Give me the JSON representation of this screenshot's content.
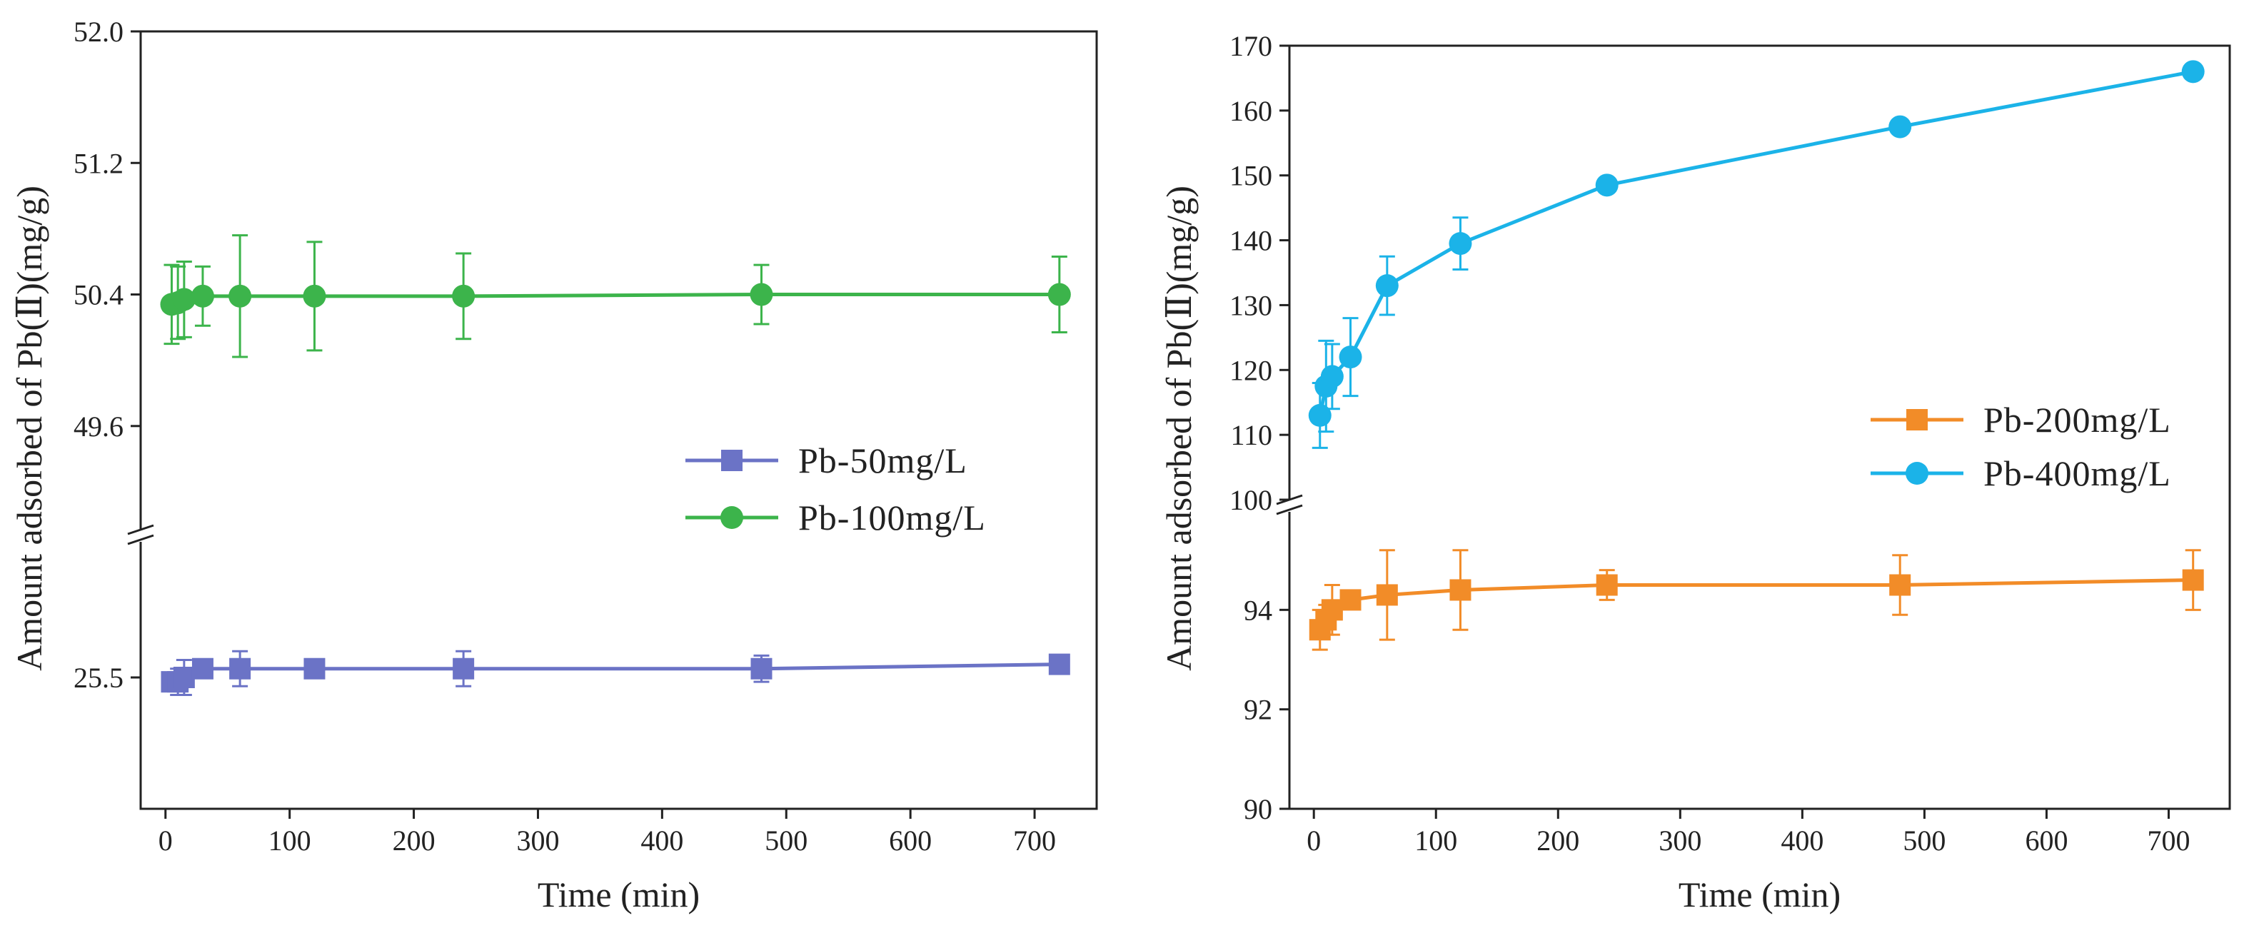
{
  "chart_data": [
    {
      "type": "line",
      "xlabel": "Time (min)",
      "ylabel": "Amount adsorbed of Pb(Ⅱ)(mg/g)",
      "xlim": [
        -20,
        750
      ],
      "xticks": [
        "0",
        "100",
        "200",
        "300",
        "400",
        "500",
        "600",
        "700"
      ],
      "y_axis_broken": true,
      "upper_ylim": [
        49.0,
        52.0
      ],
      "upper_yticks": [
        "52.0",
        "51.2",
        "50.4",
        "49.6"
      ],
      "lower_ylim": [
        25.2,
        25.8
      ],
      "lower_yticks": [
        "25.5"
      ],
      "legend_position": "center-right",
      "series": [
        {
          "name": "Pb-50mg/L",
          "color": "#6b73c6",
          "marker": "square",
          "segment": "lower",
          "x": [
            5,
            10,
            15,
            30,
            60,
            120,
            240,
            480,
            720
          ],
          "y": [
            25.49,
            25.49,
            25.5,
            25.52,
            25.52,
            25.52,
            25.52,
            25.52,
            25.53
          ],
          "error": [
            0.02,
            0.03,
            0.04,
            0.01,
            0.04,
            0.02,
            0.04,
            0.03,
            0.0
          ]
        },
        {
          "name": "Pb-100mg/L",
          "color": "#3cb44b",
          "marker": "circle",
          "segment": "upper",
          "x": [
            5,
            10,
            15,
            30,
            60,
            120,
            240,
            480,
            720
          ],
          "y": [
            50.34,
            50.35,
            50.37,
            50.39,
            50.39,
            50.39,
            50.39,
            50.4,
            50.4
          ],
          "error": [
            0.24,
            0.22,
            0.23,
            0.18,
            0.37,
            0.33,
            0.26,
            0.18,
            0.23
          ]
        }
      ]
    },
    {
      "type": "line",
      "xlabel": "Time (min)",
      "ylabel": "Amount adsorbed of Pb(Ⅱ)(mg/g)",
      "xlim": [
        -20,
        750
      ],
      "xticks": [
        "0",
        "100",
        "200",
        "300",
        "400",
        "500",
        "600",
        "700"
      ],
      "y_axis_broken": true,
      "upper_ylim": [
        100,
        170
      ],
      "upper_yticks": [
        "170",
        "160",
        "150",
        "140",
        "130",
        "120",
        "110",
        "100"
      ],
      "lower_ylim": [
        90,
        96
      ],
      "lower_yticks": [
        "94",
        "92",
        "90"
      ],
      "legend_position": "center-right",
      "series": [
        {
          "name": "Pb-200mg/L",
          "color": "#f28c28",
          "marker": "square",
          "segment": "lower",
          "x": [
            5,
            10,
            15,
            30,
            60,
            120,
            240,
            480,
            720
          ],
          "y": [
            93.6,
            93.8,
            94.0,
            94.2,
            94.3,
            94.4,
            94.5,
            94.5,
            94.6
          ],
          "error": [
            0.4,
            0.3,
            0.5,
            0.1,
            0.9,
            0.8,
            0.3,
            0.6,
            0.6
          ]
        },
        {
          "name": "Pb-400mg/L",
          "color": "#1bb3e8",
          "marker": "circle",
          "segment": "upper",
          "x": [
            5,
            10,
            15,
            30,
            60,
            120,
            240,
            480,
            720
          ],
          "y": [
            113,
            117.5,
            119,
            122,
            133,
            139.5,
            148.5,
            157.5,
            166
          ],
          "error": [
            5,
            7,
            5,
            6,
            4.5,
            4,
            1,
            1,
            1
          ]
        }
      ]
    }
  ]
}
